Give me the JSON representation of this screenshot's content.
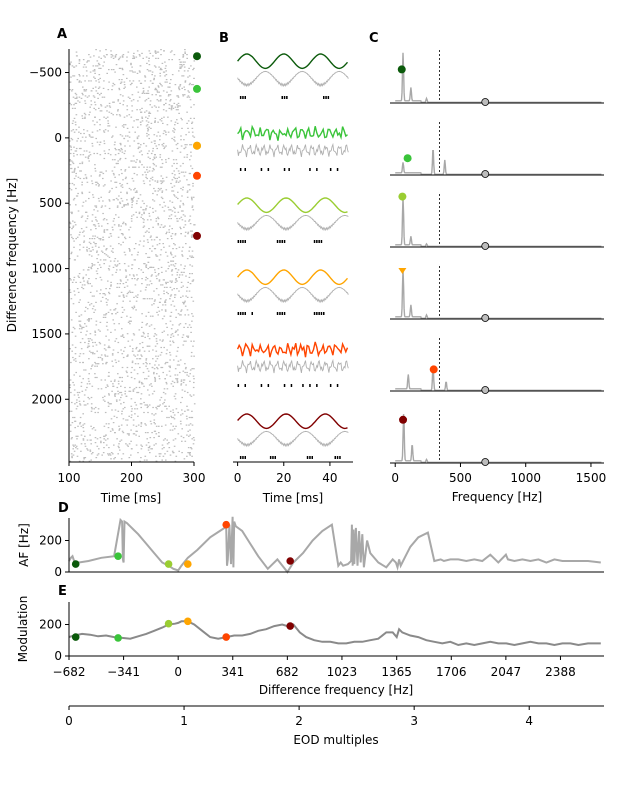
{
  "panel_labels": [
    "A",
    "B",
    "C",
    "D",
    "E"
  ],
  "colors": [
    "#0b5a0b",
    "#3ac43a",
    "#9acd32",
    "#ffa500",
    "#ff4500",
    "#800000"
  ],
  "chart_data": [
    {
      "id": "A",
      "type": "scatter",
      "xlabel": "Time [ms]",
      "ylabel": "Difference frequency [Hz]",
      "xlim": [
        100,
        300
      ],
      "ylim": [
        -680,
        2480
      ],
      "xticks": [
        100,
        200,
        300
      ],
      "yticks": [
        -500,
        0,
        500,
        1000,
        1500,
        2000
      ],
      "yinverted": true,
      "marker_rows": [
        -625,
        -375,
        60,
        60,
        290,
        750
      ]
    },
    {
      "id": "B",
      "type": "line",
      "xlabel": "Time [ms]",
      "xlim": [
        -2,
        50
      ],
      "xticks": [
        0,
        20,
        40
      ],
      "rows": [
        {
          "envelope_period_ms": 16,
          "spikes_ms": [
            1,
            2,
            3,
            19,
            20,
            21,
            37,
            38,
            39
          ]
        },
        {
          "envelope_period_ms": 3,
          "spikes_ms": [
            1,
            3,
            10,
            13,
            20,
            22,
            31,
            34,
            40,
            43
          ]
        },
        {
          "envelope_period_ms": 17,
          "spikes_ms": [
            0,
            1,
            2,
            3,
            17,
            18,
            19,
            20,
            33,
            34,
            35,
            36
          ]
        },
        {
          "envelope_period_ms": 16,
          "spikes_ms": [
            0,
            1,
            2,
            3,
            6,
            17,
            18,
            19,
            20,
            33,
            34,
            35,
            36,
            37
          ]
        },
        {
          "envelope_period_ms": 4,
          "spikes_ms": [
            0,
            3,
            10,
            13,
            20,
            23,
            28,
            31,
            34,
            40,
            43
          ]
        },
        {
          "envelope_period_ms": 17,
          "spikes_ms": [
            1,
            2,
            3,
            14,
            15,
            16,
            30,
            31,
            32,
            42,
            43,
            44
          ]
        }
      ]
    },
    {
      "id": "C",
      "type": "line",
      "xlabel": "Frequency [Hz]",
      "xlim": [
        -40,
        1600
      ],
      "xticks": [
        0,
        500,
        1000,
        1500
      ],
      "dashed_line_x": 340,
      "gray_marker_x": 690,
      "rows": [
        {
          "peaks": [
            [
              60,
              1.0
            ],
            [
              120,
              0.28
            ],
            [
              240,
              0.08
            ]
          ],
          "marker": [
            50,
            0.7
          ],
          "marker_shape": "circle"
        },
        {
          "peaks": [
            [
              60,
              0.22
            ],
            [
              290,
              0.55
            ],
            [
              380,
              0.3
            ]
          ],
          "marker": [
            95,
            0.35
          ],
          "marker_shape": "circle"
        },
        {
          "peaks": [
            [
              60,
              1.0
            ],
            [
              120,
              0.18
            ],
            [
              240,
              0.05
            ]
          ],
          "marker": [
            55,
            1.05
          ],
          "marker_shape": "circle"
        },
        {
          "peaks": [
            [
              60,
              1.0
            ],
            [
              120,
              0.25
            ],
            [
              240,
              0.07
            ]
          ],
          "marker": [
            55,
            1.0
          ],
          "marker_shape": "triangle"
        },
        {
          "peaks": [
            [
              100,
              0.3
            ],
            [
              290,
              0.55
            ],
            [
              390,
              0.18
            ]
          ],
          "marker": [
            295,
            0.45
          ],
          "marker_shape": "circle"
        },
        {
          "peaks": [
            [
              65,
              1.0
            ],
            [
              130,
              0.35
            ],
            [
              240,
              0.06
            ]
          ],
          "marker": [
            60,
            0.9
          ],
          "marker_shape": "circle"
        }
      ]
    },
    {
      "id": "D",
      "type": "line",
      "ylabel": "AF [Hz]",
      "xlim": [
        -682,
        2660
      ],
      "ylim": [
        0,
        330
      ],
      "yticks": [
        0,
        200
      ],
      "x": [
        -682,
        -670,
        -660,
        -650,
        -620,
        -560,
        -480,
        -400,
        -360,
        -350,
        -345,
        -341,
        -335,
        -320,
        -300,
        -280,
        -250,
        -200,
        -150,
        -100,
        -60,
        -30,
        0,
        20,
        60,
        120,
        200,
        260,
        290,
        300,
        305,
        310,
        320,
        330,
        340,
        345,
        350,
        360,
        400,
        450,
        500,
        560,
        620,
        682,
        720,
        780,
        840,
        900,
        960,
        1000,
        1015,
        1030,
        1060,
        1080,
        1085,
        1090,
        1095,
        1100,
        1110,
        1120,
        1130,
        1140,
        1150,
        1160,
        1180,
        1200,
        1250,
        1300,
        1340,
        1360,
        1370,
        1380,
        1390,
        1400,
        1420,
        1450,
        1500,
        1560,
        1600,
        1640,
        1660,
        1700,
        1750,
        1800,
        1850,
        1900,
        1950,
        2000,
        2047,
        2060,
        2100,
        2150,
        2200,
        2250,
        2300,
        2350,
        2400,
        2450,
        2500,
        2560,
        2640
      ],
      "y": [
        70,
        90,
        100,
        70,
        60,
        70,
        90,
        100,
        330,
        320,
        80,
        60,
        320,
        310,
        290,
        270,
        240,
        180,
        120,
        60,
        40,
        20,
        10,
        40,
        90,
        140,
        220,
        260,
        280,
        290,
        40,
        80,
        300,
        50,
        350,
        30,
        320,
        290,
        260,
        180,
        100,
        20,
        80,
        0,
        60,
        120,
        200,
        260,
        300,
        40,
        60,
        40,
        50,
        70,
        300,
        40,
        270,
        50,
        280,
        40,
        260,
        60,
        240,
        30,
        200,
        120,
        60,
        30,
        80,
        60,
        30,
        80,
        40,
        60,
        100,
        160,
        220,
        250,
        70,
        80,
        70,
        80,
        80,
        70,
        80,
        70,
        110,
        60,
        110,
        80,
        70,
        80,
        70,
        80,
        60,
        80,
        70,
        70,
        70,
        70,
        60
      ],
      "markers": [
        [
          -640,
          50
        ],
        [
          -375,
          100
        ],
        [
          -60,
          50
        ],
        [
          60,
          50
        ],
        [
          300,
          300
        ],
        [
          700,
          70
        ]
      ]
    },
    {
      "id": "E",
      "type": "line",
      "ylabel": "Modulation",
      "xlabel": "Difference frequency [Hz]",
      "xlim": [
        -682,
        2660
      ],
      "ylim": [
        0,
        330
      ],
      "yticks": [
        0,
        200
      ],
      "xticks": [
        -682,
        -341,
        0,
        341,
        682,
        1023,
        1365,
        1706,
        2047,
        2388
      ],
      "x": [
        -682,
        -650,
        -600,
        -550,
        -500,
        -450,
        -400,
        -350,
        -300,
        -250,
        -200,
        -150,
        -100,
        -60,
        -20,
        0,
        20,
        60,
        100,
        150,
        200,
        250,
        300,
        350,
        400,
        450,
        500,
        550,
        600,
        650,
        682,
        720,
        760,
        800,
        850,
        900,
        950,
        1000,
        1050,
        1100,
        1150,
        1200,
        1250,
        1300,
        1340,
        1365,
        1380,
        1400,
        1450,
        1500,
        1550,
        1600,
        1650,
        1700,
        1750,
        1800,
        1850,
        1900,
        1950,
        2000,
        2050,
        2100,
        2150,
        2200,
        2250,
        2300,
        2350,
        2400,
        2450,
        2500,
        2560,
        2640
      ],
      "y": [
        120,
        130,
        140,
        135,
        125,
        130,
        120,
        115,
        110,
        125,
        140,
        160,
        180,
        200,
        205,
        210,
        220,
        220,
        200,
        160,
        120,
        110,
        120,
        130,
        130,
        140,
        160,
        170,
        190,
        200,
        190,
        200,
        150,
        120,
        100,
        90,
        90,
        80,
        80,
        90,
        90,
        100,
        110,
        150,
        150,
        120,
        170,
        150,
        130,
        120,
        100,
        90,
        80,
        90,
        70,
        80,
        70,
        80,
        90,
        80,
        80,
        70,
        80,
        90,
        80,
        80,
        70,
        80,
        80,
        70,
        80,
        80
      ],
      "markers": [
        [
          -640,
          120
        ],
        [
          -375,
          115
        ],
        [
          -60,
          205
        ],
        [
          60,
          220
        ],
        [
          300,
          120
        ],
        [
          700,
          190
        ]
      ]
    },
    {
      "id": "EOD",
      "type": "axis",
      "xlabel": "EOD multiples",
      "xlim": [
        0,
        4.65
      ],
      "xticks": [
        0,
        1,
        2,
        3,
        4
      ]
    }
  ]
}
